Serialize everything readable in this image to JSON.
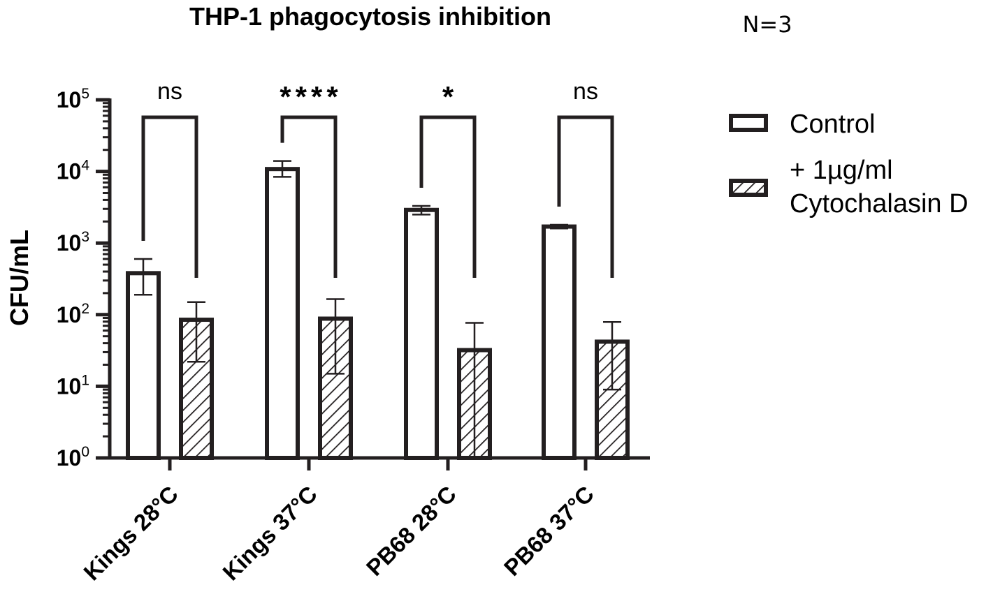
{
  "chart_data": {
    "type": "bar",
    "title": "THP-1 phagocytosis inhibition",
    "annotation": "N=3",
    "ylabel": "CFU/mL",
    "xlabel": "",
    "yscale": "log",
    "ylim": [
      1,
      100000
    ],
    "yticks": [
      {
        "base": "10",
        "exp": "0",
        "value": 1
      },
      {
        "base": "10",
        "exp": "1",
        "value": 10
      },
      {
        "base": "10",
        "exp": "2",
        "value": 100
      },
      {
        "base": "10",
        "exp": "3",
        "value": 1000
      },
      {
        "base": "10",
        "exp": "4",
        "value": 10000
      },
      {
        "base": "10",
        "exp": "5",
        "value": 100000
      }
    ],
    "categories": [
      "Kings 28°C",
      "Kings 37°C",
      "PB68 28°C",
      "PB68 37°C"
    ],
    "series": [
      {
        "name": "Control",
        "fill": "white",
        "values": [
          380,
          10800,
          2900,
          1700
        ],
        "error_low": [
          190,
          8400,
          2500,
          1600
        ],
        "error_high": [
          600,
          14000,
          3300,
          1800
        ]
      },
      {
        "name": "+ 1µg/ml\nCytochalasin D",
        "fill": "hatched",
        "values": [
          85,
          88,
          32,
          42
        ],
        "error_low": [
          22,
          15,
          1,
          9
        ],
        "error_high": [
          150,
          165,
          77,
          79
        ]
      }
    ],
    "significance": [
      "ns",
      "****",
      "*",
      "ns"
    ],
    "legend_position": "right",
    "grid": false,
    "colors": {
      "stroke": "#231f20",
      "background": "#ffffff",
      "control_fill": "#ffffff"
    }
  }
}
